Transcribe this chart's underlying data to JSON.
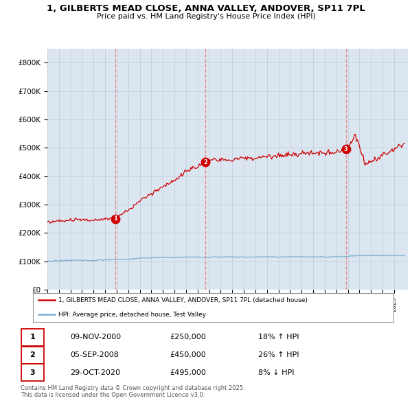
{
  "title": "1, GILBERTS MEAD CLOSE, ANNA VALLEY, ANDOVER, SP11 7PL",
  "subtitle": "Price paid vs. HM Land Registry's House Price Index (HPI)",
  "ylabel_ticks": [
    "£0",
    "£100K",
    "£200K",
    "£300K",
    "£400K",
    "£500K",
    "£600K",
    "£700K",
    "£800K"
  ],
  "ytick_values": [
    0,
    100000,
    200000,
    300000,
    400000,
    500000,
    600000,
    700000,
    800000
  ],
  "ylim": [
    0,
    850000
  ],
  "xlim_start": 1995.0,
  "xlim_end": 2026.2,
  "transactions": [
    {
      "num": 1,
      "date": "09-NOV-2000",
      "year": 2000.87,
      "price": 250000,
      "pct": "18%",
      "dir": "↑"
    },
    {
      "num": 2,
      "date": "05-SEP-2008",
      "year": 2008.68,
      "price": 450000,
      "pct": "26%",
      "dir": "↑"
    },
    {
      "num": 3,
      "date": "29-OCT-2020",
      "year": 2020.83,
      "price": 495000,
      "pct": "8%",
      "dir": "↓"
    }
  ],
  "red_color": "#cc0000",
  "blue_color": "#7aafd4",
  "dashed_color": "#e88080",
  "bg_color": "#dce6f1",
  "plot_bg": "#ffffff",
  "grid_color": "#c0c8d8",
  "legend_label_red": "1, GILBERTS MEAD CLOSE, ANNA VALLEY, ANDOVER, SP11 7PL (detached house)",
  "legend_label_blue": "HPI: Average price, detached house, Test Valley",
  "footer": "Contains HM Land Registry data © Crown copyright and database right 2025.\nThis data is licensed under the Open Government Licence v3.0."
}
